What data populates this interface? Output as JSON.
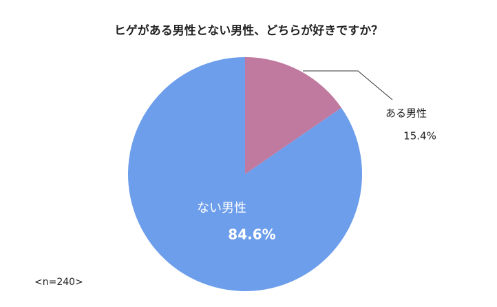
{
  "chart_data": {
    "type": "pie",
    "title": "ヒゲがある男性とない男性、どちらが好きですか？",
    "categories": [
      "ある男性",
      "ない男性"
    ],
    "values": [
      15.4,
      84.6
    ],
    "value_labels": [
      "15.4%",
      "84.6%"
    ],
    "colors": [
      "#c0799f",
      "#6d9eeb"
    ],
    "note": "<n=240>"
  }
}
